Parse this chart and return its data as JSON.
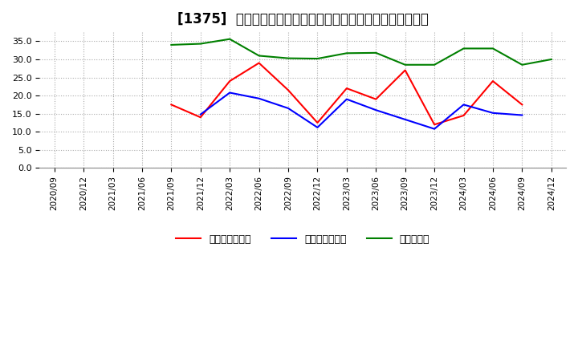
{
  "title": "[1375]  売上債権回転率、買入債務回転率、在庫回転率の推移",
  "xlabels": [
    "2020/09",
    "2020/12",
    "2021/03",
    "2021/06",
    "2021/09",
    "2021/12",
    "2022/03",
    "2022/06",
    "2022/09",
    "2022/12",
    "2023/03",
    "2023/06",
    "2023/09",
    "2023/12",
    "2024/03",
    "2024/06",
    "2024/09",
    "2024/12"
  ],
  "売上債権回転率": [
    null,
    null,
    null,
    null,
    17.5,
    14.0,
    24.0,
    29.0,
    21.5,
    12.5,
    22.0,
    19.0,
    27.0,
    12.0,
    14.5,
    24.0,
    17.5,
    null
  ],
  "買入債務回転率": [
    null,
    null,
    null,
    null,
    null,
    14.8,
    20.8,
    19.2,
    16.5,
    11.2,
    19.0,
    16.0,
    null,
    10.8,
    17.5,
    15.2,
    14.6,
    null
  ],
  "在庫回転率": [
    null,
    null,
    null,
    null,
    34.0,
    34.3,
    35.6,
    31.0,
    30.3,
    30.2,
    31.7,
    31.8,
    28.5,
    28.5,
    33.0,
    33.0,
    28.5,
    30.0
  ],
  "line_colors": {
    "売上債権回転率": "#ff0000",
    "買入債務回転率": "#0000ff",
    "在庫回転率": "#008000"
  },
  "ylim": [
    0,
    37.5
  ],
  "yticks": [
    0.0,
    5.0,
    10.0,
    15.0,
    20.0,
    25.0,
    30.0,
    35.0
  ],
  "background_color": "#ffffff",
  "grid_color": "#aaaaaa",
  "title_fontsize": 12,
  "legend_labels": [
    "売上債権回転率",
    "買入債務回転率",
    "在庫回転率"
  ]
}
